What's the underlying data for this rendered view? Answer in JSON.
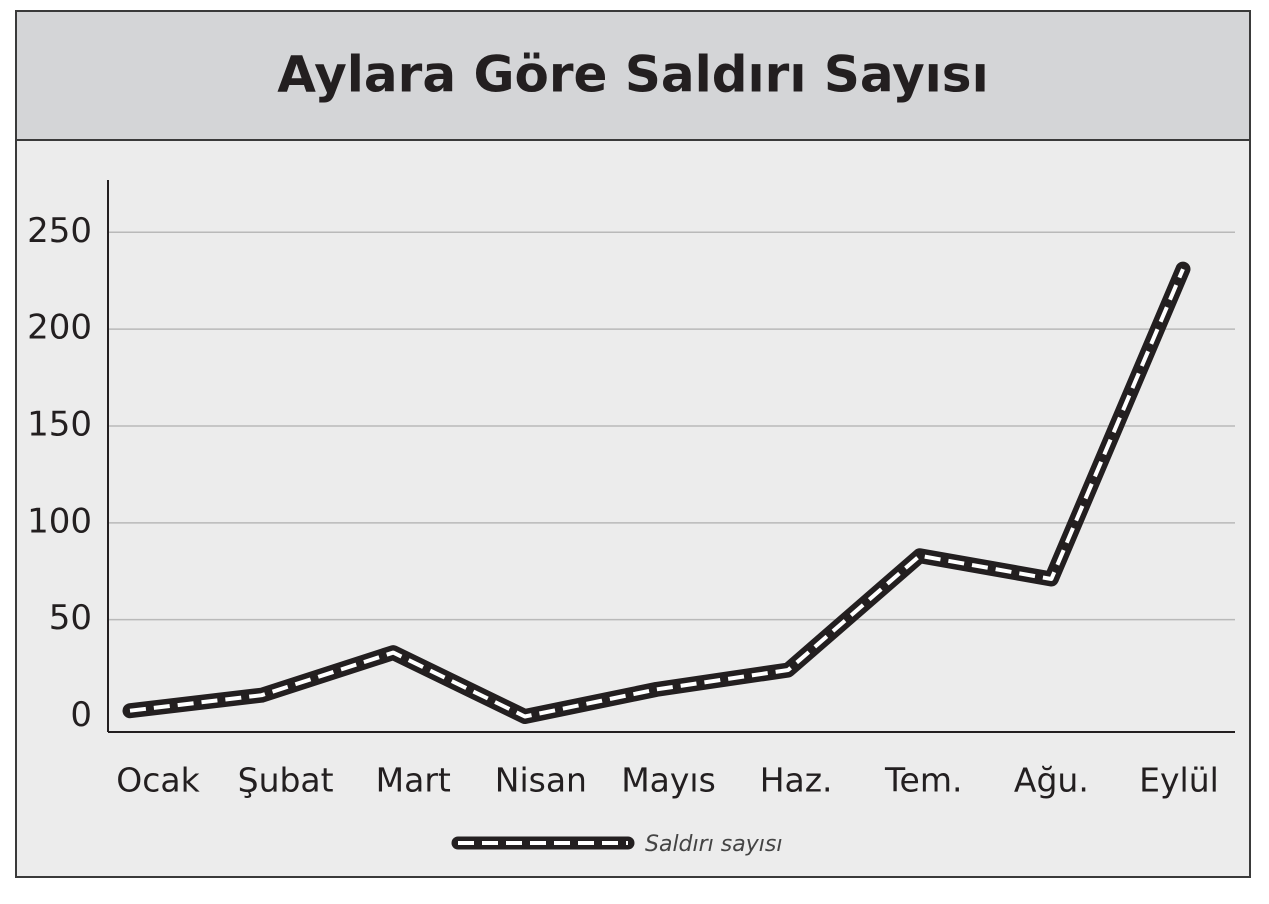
{
  "chart_data": {
    "type": "line",
    "title": "Aylara Göre Saldırı Sayısı",
    "categories": [
      "Ocak",
      "Şubat",
      "Mart",
      "Nisan",
      "Mayıs",
      "Haz.",
      "Tem.",
      "Ağu.",
      "Eylül"
    ],
    "series": [
      {
        "name": "Saldırı sayısı",
        "color": "#231f20",
        "values": [
          3,
          11,
          33,
          0,
          14,
          24,
          83,
          71,
          231
        ]
      }
    ],
    "ylim": [
      -8,
      277
    ],
    "yticks": [
      0,
      50,
      100,
      150,
      200,
      250
    ],
    "grid": true,
    "legend": "bottom"
  }
}
